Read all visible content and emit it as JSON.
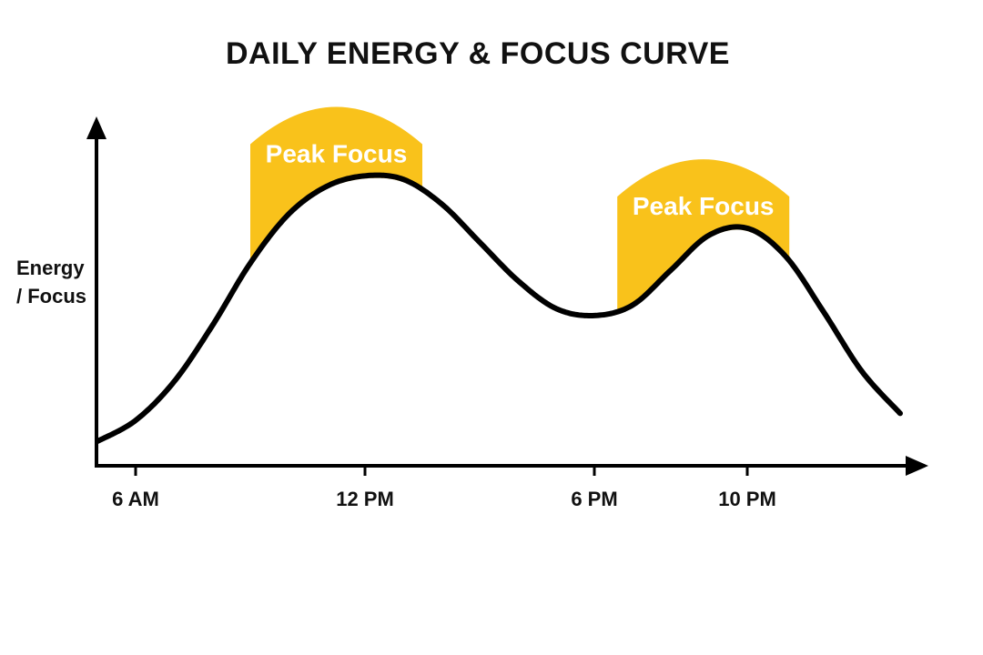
{
  "chart_data": {
    "type": "line",
    "title": "DAILY ENERGY & FOCUS CURVE",
    "xlabel": "",
    "ylabel_lines": [
      "Energy",
      "/ Focus"
    ],
    "x_ticks": [
      {
        "hour": 6,
        "label": "6 AM"
      },
      {
        "hour": 12,
        "label": "12 PM"
      },
      {
        "hour": 18,
        "label": "6 PM"
      },
      {
        "hour": 22,
        "label": "10 PM"
      }
    ],
    "xlim": [
      5,
      26.5
    ],
    "ylim": [
      0,
      10
    ],
    "series": [
      {
        "x": [
          5.0,
          6.0,
          7.0,
          8.0,
          9.0,
          10.0,
          11.0,
          12.0,
          13.0,
          14.0,
          15.0,
          16.0,
          17.0,
          18.0,
          19.0,
          20.0,
          21.0,
          22.0,
          23.0,
          24.0,
          25.0,
          26.0
        ],
        "y": [
          0.7,
          1.3,
          2.4,
          4.0,
          5.8,
          7.2,
          8.0,
          8.3,
          8.2,
          7.5,
          6.4,
          5.3,
          4.5,
          4.3,
          4.6,
          5.6,
          6.6,
          6.8,
          6.0,
          4.4,
          2.7,
          1.5
        ]
      }
    ],
    "highlight_color": "#F9C21B",
    "line_color": "#000000",
    "bands": [
      {
        "label": "Peak Focus",
        "x_start": 9.0,
        "x_end": 13.5,
        "top": 10.3
      },
      {
        "label": "Peak Focus",
        "x_start": 18.6,
        "x_end": 23.1,
        "top": 8.8
      }
    ]
  }
}
